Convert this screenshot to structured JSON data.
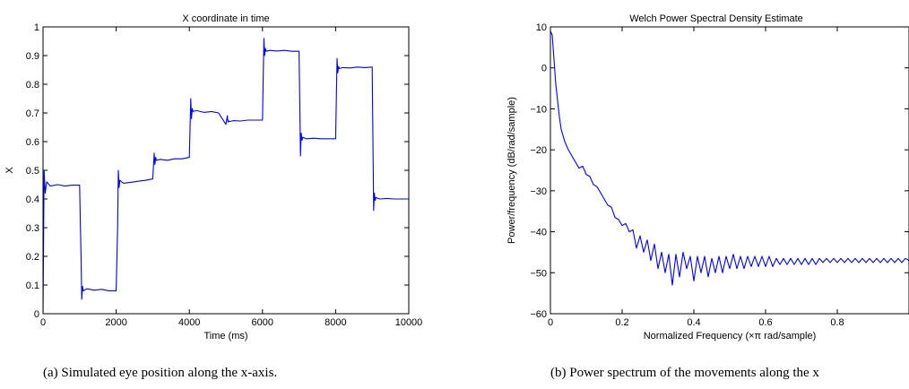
{
  "chart_data": [
    {
      "type": "line",
      "title": "X coordinate in time",
      "xlabel": "Time (ms)",
      "ylabel": "X",
      "xlim": [
        0,
        10000
      ],
      "ylim": [
        0,
        1
      ],
      "xticks": [
        0,
        2000,
        4000,
        6000,
        8000,
        10000
      ],
      "xtick_labels": [
        "0",
        "2000",
        "4000",
        "6000",
        "8000",
        "10000"
      ],
      "yticks": [
        0,
        0.1,
        0.2,
        0.3,
        0.4,
        0.5,
        0.6,
        0.7,
        0.8,
        0.9,
        1
      ],
      "ytick_labels": [
        "0",
        "0.1",
        "0.2",
        "0.3",
        "0.4",
        "0.5",
        "0.6",
        "0.7",
        "0.8",
        "0.9",
        "1"
      ],
      "grid": false,
      "color": "#0000ff",
      "series": [
        {
          "x": [
            0,
            30,
            60,
            100,
            200,
            400,
            600,
            800,
            1000,
            1040,
            1060,
            1080,
            1100,
            1200,
            1400,
            1600,
            1800,
            2000,
            2040,
            2060,
            2080,
            2100,
            2200,
            2400,
            2600,
            2800,
            3000,
            3040,
            3060,
            3080,
            3100,
            3200,
            3400,
            3600,
            3800,
            4000,
            4040,
            4060,
            4080,
            4100,
            4200,
            4400,
            4600,
            4800,
            5000,
            5040,
            5060,
            5080,
            5100,
            5200,
            5400,
            5600,
            5800,
            6000,
            6040,
            6060,
            6080,
            6100,
            6200,
            6400,
            6600,
            6800,
            7000,
            7040,
            7060,
            7080,
            7100,
            7200,
            7400,
            7600,
            7800,
            8000,
            8040,
            8060,
            8080,
            8100,
            8200,
            8400,
            8600,
            8800,
            9000,
            9040,
            9060,
            9080,
            9100,
            9200,
            9400,
            9600,
            9800,
            10000
          ],
          "y": [
            0.0,
            0.5,
            0.42,
            0.46,
            0.445,
            0.45,
            0.445,
            0.448,
            0.448,
            0.2,
            0.05,
            0.095,
            0.08,
            0.087,
            0.082,
            0.085,
            0.08,
            0.08,
            0.3,
            0.5,
            0.44,
            0.465,
            0.455,
            0.458,
            0.462,
            0.465,
            0.47,
            0.56,
            0.52,
            0.545,
            0.535,
            0.538,
            0.535,
            0.54,
            0.54,
            0.545,
            0.75,
            0.68,
            0.715,
            0.705,
            0.708,
            0.702,
            0.705,
            0.7,
            0.66,
            0.69,
            0.668,
            0.672,
            0.67,
            0.673,
            0.672,
            0.675,
            0.675,
            0.675,
            0.96,
            0.9,
            0.925,
            0.915,
            0.918,
            0.916,
            0.918,
            0.915,
            0.915,
            0.55,
            0.63,
            0.605,
            0.615,
            0.61,
            0.612,
            0.61,
            0.61,
            0.61,
            0.89,
            0.84,
            0.862,
            0.855,
            0.858,
            0.857,
            0.86,
            0.858,
            0.86,
            0.36,
            0.42,
            0.395,
            0.405,
            0.4,
            0.402,
            0.4,
            0.4,
            0.4
          ]
        }
      ]
    },
    {
      "type": "line",
      "title": "Welch Power Spectral Density Estimate",
      "xlabel": "Normalized Frequency  (×π rad/sample)",
      "ylabel": "Power/frequency (dB/rad/sample)",
      "xlim": [
        0,
        1
      ],
      "ylim": [
        -60,
        10
      ],
      "xticks": [
        0,
        0.2,
        0.4,
        0.6,
        0.8
      ],
      "xtick_labels": [
        "0",
        "0.2",
        "0.4",
        "0.6",
        "0.8"
      ],
      "yticks": [
        -60,
        -50,
        -40,
        -30,
        -20,
        -10,
        0,
        10
      ],
      "ytick_labels": [
        "−60",
        "−50",
        "−40",
        "−30",
        "−20",
        "−10",
        "0",
        "10"
      ],
      "grid": false,
      "color": "#0000ff",
      "series": [
        {
          "x": [
            0.0,
            0.005,
            0.01,
            0.015,
            0.02,
            0.025,
            0.03,
            0.04,
            0.05,
            0.06,
            0.07,
            0.08,
            0.09,
            0.1,
            0.11,
            0.12,
            0.13,
            0.14,
            0.15,
            0.16,
            0.17,
            0.18,
            0.19,
            0.2,
            0.21,
            0.22,
            0.23,
            0.24,
            0.25,
            0.26,
            0.27,
            0.28,
            0.29,
            0.3,
            0.31,
            0.32,
            0.33,
            0.34,
            0.35,
            0.36,
            0.37,
            0.38,
            0.39,
            0.4,
            0.41,
            0.42,
            0.43,
            0.44,
            0.45,
            0.46,
            0.47,
            0.48,
            0.49,
            0.5,
            0.51,
            0.52,
            0.53,
            0.54,
            0.55,
            0.56,
            0.57,
            0.58,
            0.59,
            0.6,
            0.61,
            0.62,
            0.63,
            0.64,
            0.65,
            0.66,
            0.67,
            0.68,
            0.69,
            0.7,
            0.71,
            0.72,
            0.73,
            0.74,
            0.75,
            0.76,
            0.77,
            0.78,
            0.79,
            0.8,
            0.81,
            0.82,
            0.83,
            0.84,
            0.85,
            0.86,
            0.87,
            0.88,
            0.89,
            0.9,
            0.91,
            0.92,
            0.93,
            0.94,
            0.95,
            0.96,
            0.97,
            0.98,
            0.99,
            1.0
          ],
          "y": [
            9,
            8,
            2,
            -4,
            -8,
            -12,
            -15,
            -18,
            -20,
            -21.5,
            -23,
            -24.5,
            -24,
            -26,
            -26.5,
            -28.5,
            -29,
            -30.5,
            -32,
            -33.5,
            -34,
            -36.5,
            -37,
            -38.5,
            -38,
            -40,
            -39.5,
            -44,
            -41,
            -45,
            -42,
            -47,
            -43,
            -49,
            -45,
            -50,
            -45.5,
            -53,
            -45.5,
            -51,
            -45,
            -49,
            -46,
            -52,
            -46,
            -50,
            -46,
            -51,
            -46.5,
            -50,
            -46,
            -50,
            -46,
            -49,
            -45.5,
            -49,
            -46,
            -49,
            -46,
            -48.5,
            -46,
            -48.5,
            -46,
            -48.5,
            -46,
            -48.5,
            -46.5,
            -48,
            -46.5,
            -48,
            -46.5,
            -48,
            -46.5,
            -48,
            -46.5,
            -48,
            -46.5,
            -48,
            -46.5,
            -47.5,
            -46.5,
            -47.5,
            -46.5,
            -47.5,
            -46.5,
            -47.5,
            -46.5,
            -47.5,
            -46.5,
            -47.5,
            -46.5,
            -47.5,
            -46.5,
            -47.5,
            -46.5,
            -47.5,
            -46.5,
            -47.5,
            -46.5,
            -47.5,
            -46.5,
            -47.5,
            -46.5,
            -47
          ]
        }
      ]
    }
  ],
  "captions": {
    "a": "(a)  Simulated eye position along the x-axis.",
    "b": "(b)  Power spectrum of the movements along the x"
  }
}
